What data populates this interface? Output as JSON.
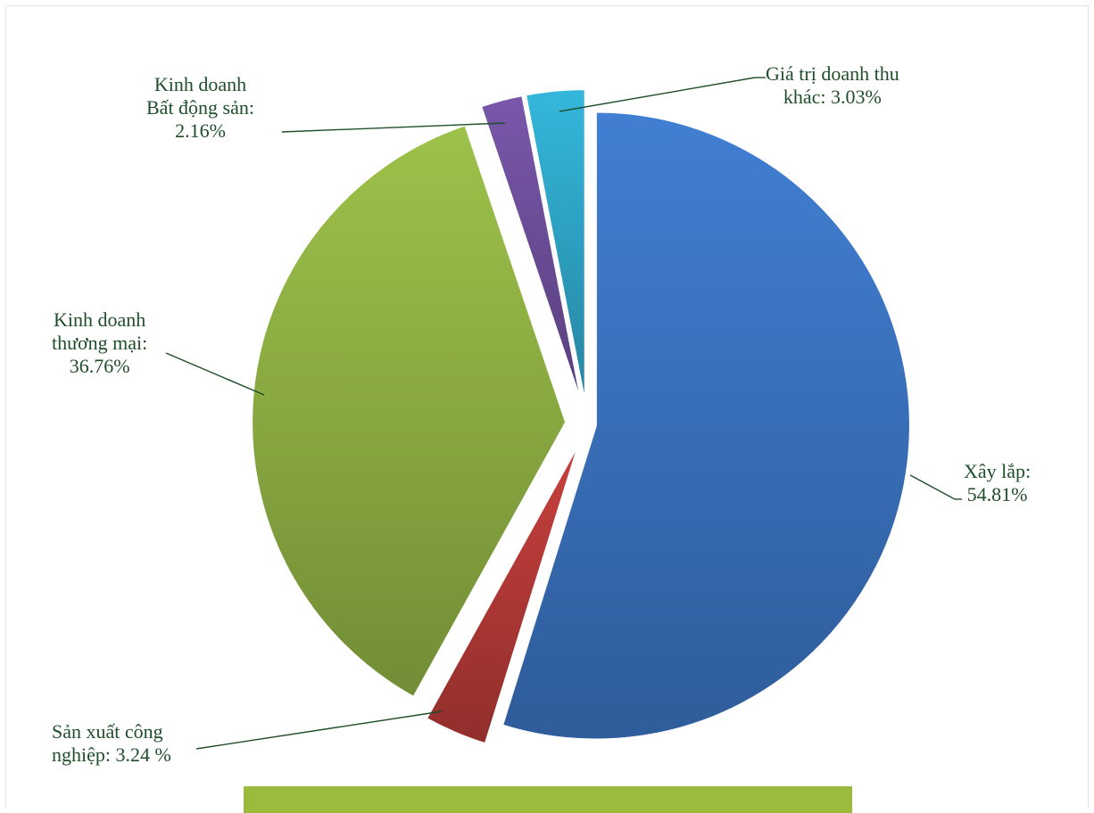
{
  "chart_data": {
    "type": "pie",
    "title": "",
    "legend": "none",
    "slices": [
      {
        "label_lines": [
          "Xây lắp:",
          "54.81%"
        ],
        "value": 54.81,
        "color": "#3b73c0"
      },
      {
        "label_lines": [
          "Sản xuất công",
          "nghiệp: 3.24 %"
        ],
        "value": 3.24,
        "color": "#b53a37"
      },
      {
        "label_lines": [
          "Kinh doanh",
          "thương mại:",
          "36.76%"
        ],
        "value": 36.76,
        "color": "#8fb043"
      },
      {
        "label_lines": [
          "Kinh doanh",
          "Bất động sản:",
          "2.16%"
        ],
        "value": 2.16,
        "color": "#6e4f9b"
      },
      {
        "label_lines": [
          "Giá trị doanh thu",
          "khác: 3.03%"
        ],
        "value": 3.03,
        "color": "#2fa6c8"
      }
    ]
  },
  "colors": {
    "label_text": "#1f4e2a",
    "leader_line": "#1f4e2a",
    "bottom_bar": "#9bbb3f"
  }
}
